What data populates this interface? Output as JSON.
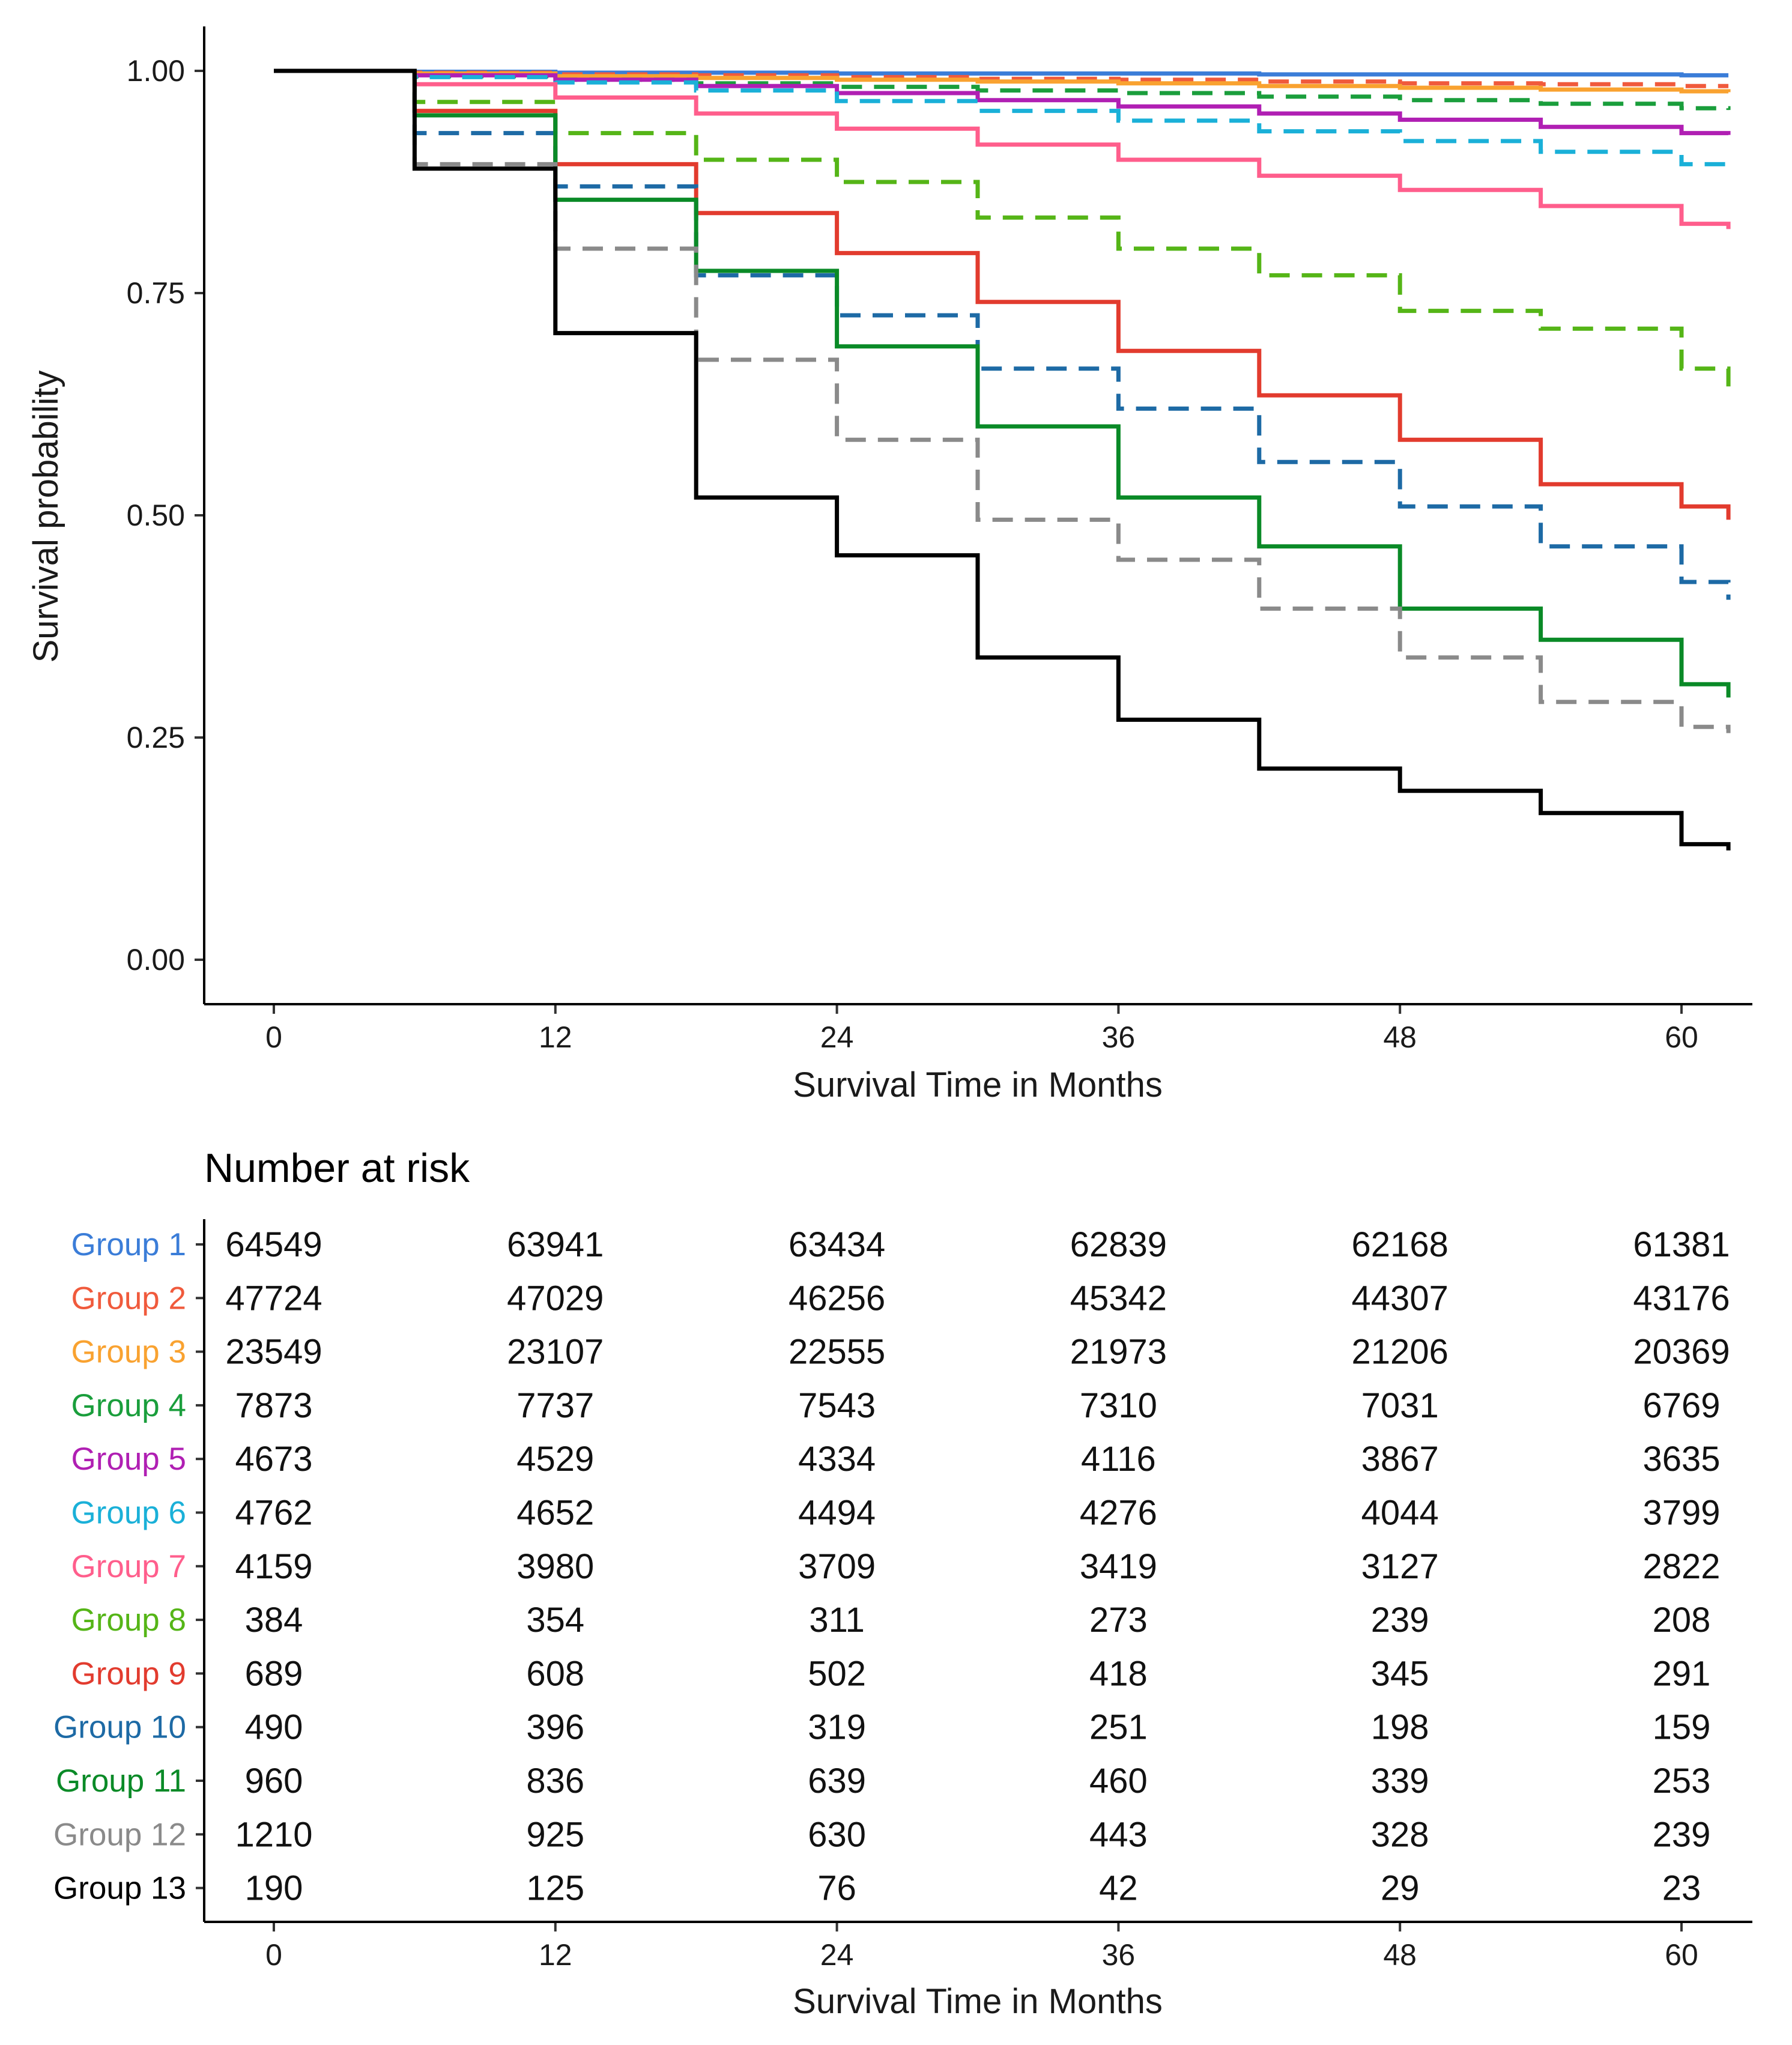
{
  "chart_data": [
    {
      "type": "line",
      "subtype": "kaplan-meier step survival curves",
      "title": "",
      "xlabel": "Survival Time in Months",
      "ylabel": "Survival probability",
      "xlim": [
        0,
        62
      ],
      "ylim": [
        0,
        1
      ],
      "x_ticks": [
        0,
        12,
        24,
        36,
        48,
        60
      ],
      "x_tick_labels": [
        "0",
        "12",
        "24",
        "36",
        "48",
        "60"
      ],
      "y_ticks": [
        0,
        0.25,
        0.5,
        0.75,
        1.0
      ],
      "y_tick_labels": [
        "0.00",
        "0.25",
        "0.50",
        "0.75",
        "1.00"
      ],
      "grid": false,
      "legend": "none (group labels in risk table)",
      "x": [
        0,
        6,
        12,
        18,
        24,
        30,
        36,
        42,
        48,
        54,
        60,
        62
      ],
      "series": [
        {
          "name": "Group 1",
          "color": "#3b7dd8",
          "dash": "solid",
          "values": [
            1.0,
            0.999,
            0.998,
            0.998,
            0.997,
            0.997,
            0.997,
            0.996,
            0.996,
            0.996,
            0.995,
            0.995
          ]
        },
        {
          "name": "Group 2",
          "color": "#f05a3c",
          "dash": "dashed",
          "values": [
            1.0,
            0.998,
            0.996,
            0.995,
            0.993,
            0.991,
            0.99,
            0.988,
            0.986,
            0.985,
            0.983,
            0.983
          ]
        },
        {
          "name": "Group 3",
          "color": "#f9a230",
          "dash": "solid",
          "values": [
            1.0,
            0.997,
            0.994,
            0.992,
            0.99,
            0.988,
            0.986,
            0.983,
            0.981,
            0.979,
            0.977,
            0.976
          ]
        },
        {
          "name": "Group 4",
          "color": "#1a9e3c",
          "dash": "dashed",
          "values": [
            1.0,
            0.994,
            0.99,
            0.986,
            0.982,
            0.978,
            0.975,
            0.971,
            0.967,
            0.963,
            0.958,
            0.956
          ]
        },
        {
          "name": "Group 5",
          "color": "#b01fb3",
          "dash": "solid",
          "values": [
            1.0,
            0.995,
            0.99,
            0.983,
            0.975,
            0.967,
            0.96,
            0.952,
            0.945,
            0.937,
            0.93,
            0.928
          ]
        },
        {
          "name": "Group 6",
          "color": "#1ab0d8",
          "dash": "dashed",
          "values": [
            1.0,
            0.993,
            0.987,
            0.978,
            0.966,
            0.955,
            0.944,
            0.932,
            0.921,
            0.909,
            0.895,
            0.89
          ]
        },
        {
          "name": "Group 7",
          "color": "#ff5e8c",
          "dash": "solid",
          "values": [
            1.0,
            0.985,
            0.97,
            0.952,
            0.935,
            0.917,
            0.9,
            0.882,
            0.866,
            0.848,
            0.828,
            0.822
          ]
        },
        {
          "name": "Group 8",
          "color": "#55b517",
          "dash": "dashed",
          "values": [
            1.0,
            0.965,
            0.93,
            0.9,
            0.875,
            0.835,
            0.8,
            0.77,
            0.73,
            0.71,
            0.665,
            0.645
          ]
        },
        {
          "name": "Group 9",
          "color": "#e23b2e",
          "dash": "solid",
          "values": [
            1.0,
            0.955,
            0.895,
            0.84,
            0.795,
            0.74,
            0.685,
            0.635,
            0.585,
            0.535,
            0.51,
            0.495
          ]
        },
        {
          "name": "Group 10",
          "color": "#1d6aa5",
          "dash": "dashed",
          "values": [
            1.0,
            0.93,
            0.87,
            0.77,
            0.725,
            0.665,
            0.62,
            0.56,
            0.51,
            0.465,
            0.425,
            0.405
          ]
        },
        {
          "name": "Group 11",
          "color": "#0a8a27",
          "dash": "solid",
          "values": [
            1.0,
            0.95,
            0.855,
            0.775,
            0.69,
            0.6,
            0.52,
            0.465,
            0.395,
            0.36,
            0.31,
            0.295
          ]
        },
        {
          "name": "Group 12",
          "color": "#8a8a8a",
          "dash": "dashed",
          "values": [
            1.0,
            0.895,
            0.8,
            0.675,
            0.585,
            0.495,
            0.45,
            0.395,
            0.34,
            0.29,
            0.262,
            0.255
          ]
        },
        {
          "name": "Group 13",
          "color": "#000000",
          "dash": "solid",
          "values": [
            1.0,
            0.89,
            0.705,
            0.52,
            0.455,
            0.34,
            0.27,
            0.215,
            0.19,
            0.165,
            0.13,
            0.123
          ]
        }
      ]
    },
    {
      "type": "table",
      "title": "Number at risk",
      "xlabel": "Survival Time in Months",
      "x_ticks": [
        0,
        12,
        24,
        36,
        48,
        60
      ],
      "x_tick_labels": [
        "0",
        "12",
        "24",
        "36",
        "48",
        "60"
      ],
      "columns": [
        0,
        12,
        24,
        36,
        48,
        60
      ],
      "rows": [
        {
          "label": "Group 1",
          "color": "#3b7dd8",
          "values": [
            "64549",
            "63941",
            "63434",
            "62839",
            "62168",
            "61381"
          ]
        },
        {
          "label": "Group 2",
          "color": "#f05a3c",
          "values": [
            "47724",
            "47029",
            "46256",
            "45342",
            "44307",
            "43176"
          ]
        },
        {
          "label": "Group 3",
          "color": "#f9a230",
          "values": [
            "23549",
            "23107",
            "22555",
            "21973",
            "21206",
            "20369"
          ]
        },
        {
          "label": "Group 4",
          "color": "#1a9e3c",
          "values": [
            "7873",
            "7737",
            "7543",
            "7310",
            "7031",
            "6769"
          ]
        },
        {
          "label": "Group 5",
          "color": "#b01fb3",
          "values": [
            "4673",
            "4529",
            "4334",
            "4116",
            "3867",
            "3635"
          ]
        },
        {
          "label": "Group 6",
          "color": "#1ab0d8",
          "values": [
            "4762",
            "4652",
            "4494",
            "4276",
            "4044",
            "3799"
          ]
        },
        {
          "label": "Group 7",
          "color": "#ff5e8c",
          "values": [
            "4159",
            "3980",
            "3709",
            "3419",
            "3127",
            "2822"
          ]
        },
        {
          "label": "Group 8",
          "color": "#55b517",
          "values": [
            "384",
            "354",
            "311",
            "273",
            "239",
            "208"
          ]
        },
        {
          "label": "Group 9",
          "color": "#e23b2e",
          "values": [
            "689",
            "608",
            "502",
            "418",
            "345",
            "291"
          ]
        },
        {
          "label": "Group 10",
          "color": "#1d6aa5",
          "values": [
            "490",
            "396",
            "319",
            "251",
            "198",
            "159"
          ]
        },
        {
          "label": "Group 11",
          "color": "#0a8a27",
          "values": [
            "960",
            "836",
            "639",
            "460",
            "339",
            "253"
          ]
        },
        {
          "label": "Group 12",
          "color": "#8a8a8a",
          "values": [
            "1210",
            "925",
            "630",
            "443",
            "328",
            "239"
          ]
        },
        {
          "label": "Group 13",
          "color": "#000000",
          "values": [
            "190",
            "125",
            "76",
            "42",
            "29",
            "23"
          ]
        }
      ]
    }
  ]
}
